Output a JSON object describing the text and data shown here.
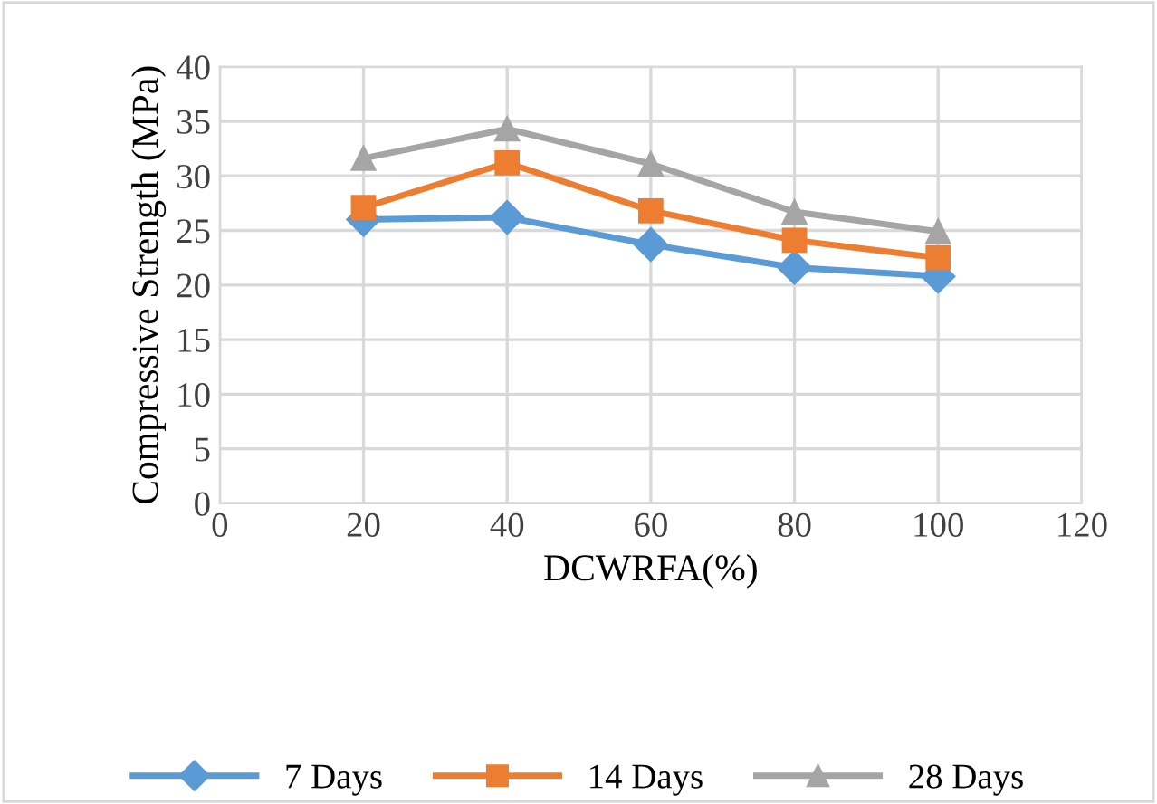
{
  "chart_data": {
    "type": "line",
    "xlabel": "DCWRFA(%)",
    "ylabel": "Compressive Strength (MPa)",
    "x": [
      20,
      40,
      60,
      80,
      100
    ],
    "series": [
      {
        "name": "7 Days",
        "color": "#5b9bd5",
        "marker": "diamond",
        "values": [
          26.0,
          26.2,
          23.7,
          21.6,
          20.8
        ]
      },
      {
        "name": "14 Days",
        "color": "#ed7d31",
        "marker": "square",
        "values": [
          27.1,
          31.2,
          26.8,
          24.1,
          22.5
        ]
      },
      {
        "name": "28 Days",
        "color": "#a5a5a5",
        "marker": "triangle",
        "values": [
          31.6,
          34.3,
          31.1,
          26.7,
          24.9
        ]
      }
    ],
    "xlim": [
      0,
      120
    ],
    "xticks": [
      0,
      20,
      40,
      60,
      80,
      100,
      120
    ],
    "ylim": [
      0,
      40
    ],
    "yticks": [
      0,
      5,
      10,
      15,
      20,
      25,
      30,
      35,
      40
    ],
    "grid": true,
    "legend": "bottom",
    "line_style": "solid"
  }
}
